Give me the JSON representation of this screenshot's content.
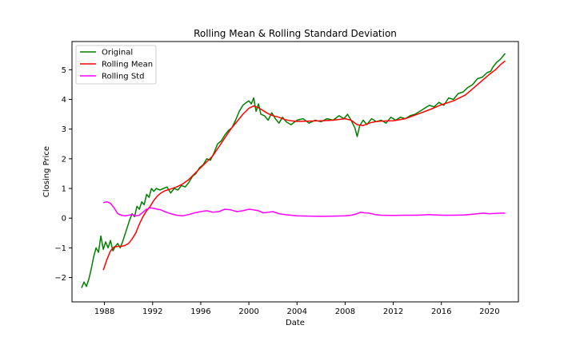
{
  "chart_data": {
    "type": "line",
    "title": "Rolling Mean & Rolling Standard Deviation",
    "xlabel": "Date",
    "ylabel": "Closing Price",
    "xlim": [
      1985.3,
      2022.4
    ],
    "ylim": [
      -2.82,
      5.95
    ],
    "x_ticks": [
      1988,
      1992,
      1996,
      2000,
      2004,
      2008,
      2012,
      2016,
      2020
    ],
    "x_tick_labels": [
      "1988",
      "1992",
      "1996",
      "2000",
      "2004",
      "2008",
      "2012",
      "2016",
      "2020"
    ],
    "y_ticks": [
      -2,
      -1,
      0,
      1,
      2,
      3,
      4,
      5
    ],
    "y_tick_labels": [
      "−2",
      "−1",
      "0",
      "1",
      "2",
      "3",
      "4",
      "5"
    ],
    "grid": false,
    "legend_position": "upper-left",
    "series": [
      {
        "name": "Original",
        "color": "#008000",
        "x": [
          1986.1,
          1986.3,
          1986.5,
          1986.7,
          1986.9,
          1987.1,
          1987.3,
          1987.5,
          1987.7,
          1987.9,
          1988.1,
          1988.3,
          1988.5,
          1988.7,
          1988.9,
          1989.1,
          1989.3,
          1989.5,
          1989.7,
          1989.9,
          1990.1,
          1990.3,
          1990.5,
          1990.7,
          1990.9,
          1991.1,
          1991.3,
          1991.5,
          1991.7,
          1991.9,
          1992.1,
          1992.3,
          1992.6,
          1992.9,
          1993.2,
          1993.5,
          1993.8,
          1994.1,
          1994.4,
          1994.7,
          1995.0,
          1995.3,
          1995.6,
          1995.9,
          1996.2,
          1996.5,
          1996.8,
          1997.1,
          1997.4,
          1997.7,
          1998.0,
          1998.3,
          1998.6,
          1998.9,
          1999.2,
          1999.5,
          1999.8,
          2000.0,
          2000.2,
          2000.4,
          2000.6,
          2000.8,
          2001.0,
          2001.3,
          2001.6,
          2001.9,
          2002.2,
          2002.5,
          2002.8,
          2003.1,
          2003.5,
          2004.0,
          2004.5,
          2005.0,
          2005.5,
          2006.0,
          2006.5,
          2007.0,
          2007.5,
          2007.9,
          2008.2,
          2008.5,
          2008.8,
          2009.0,
          2009.2,
          2009.5,
          2009.8,
          2010.2,
          2010.6,
          2011.0,
          2011.4,
          2011.8,
          2012.2,
          2012.6,
          2013.0,
          2013.4,
          2013.8,
          2014.2,
          2014.6,
          2015.0,
          2015.4,
          2015.8,
          2016.2,
          2016.6,
          2017.0,
          2017.4,
          2017.8,
          2018.2,
          2018.6,
          2019.0,
          2019.4,
          2019.8,
          2020.1,
          2020.3,
          2020.6,
          2020.9,
          2021.1,
          2021.3
        ],
        "values": [
          -2.35,
          -2.15,
          -2.3,
          -2.05,
          -1.7,
          -1.3,
          -1.0,
          -1.15,
          -0.6,
          -1.05,
          -0.8,
          -1.0,
          -0.75,
          -1.1,
          -0.95,
          -0.85,
          -1.0,
          -0.8,
          -0.55,
          -0.3,
          -0.05,
          0.15,
          0.05,
          0.4,
          0.3,
          0.55,
          0.45,
          0.8,
          0.7,
          1.0,
          0.9,
          1.0,
          0.95,
          1.0,
          1.05,
          0.85,
          1.0,
          0.95,
          1.1,
          1.05,
          1.2,
          1.4,
          1.5,
          1.7,
          1.8,
          2.0,
          1.95,
          2.2,
          2.5,
          2.6,
          2.8,
          2.95,
          3.05,
          3.3,
          3.6,
          3.8,
          3.9,
          3.95,
          3.85,
          4.05,
          3.6,
          3.85,
          3.5,
          3.45,
          3.3,
          3.55,
          3.35,
          3.2,
          3.4,
          3.25,
          3.15,
          3.3,
          3.35,
          3.2,
          3.3,
          3.25,
          3.35,
          3.3,
          3.45,
          3.35,
          3.5,
          3.3,
          3.05,
          2.75,
          3.1,
          3.3,
          3.15,
          3.35,
          3.25,
          3.3,
          3.2,
          3.4,
          3.3,
          3.4,
          3.35,
          3.45,
          3.5,
          3.6,
          3.7,
          3.8,
          3.75,
          3.9,
          3.8,
          4.05,
          4.0,
          4.2,
          4.25,
          4.4,
          4.5,
          4.7,
          4.75,
          4.9,
          4.95,
          5.1,
          5.25,
          5.35,
          5.45,
          5.55
        ]
      },
      {
        "name": "Rolling Mean",
        "color": "#ff0000",
        "x": [
          1987.9,
          1988.2,
          1988.5,
          1988.8,
          1989.1,
          1989.4,
          1989.7,
          1990.0,
          1990.3,
          1990.6,
          1990.9,
          1991.2,
          1991.5,
          1991.8,
          1992.1,
          1992.4,
          1992.7,
          1993.0,
          1993.5,
          1994.0,
          1994.5,
          1995.0,
          1995.5,
          1996.0,
          1996.5,
          1997.0,
          1997.5,
          1998.0,
          1998.5,
          1999.0,
          1999.5,
          2000.0,
          2000.4,
          2000.8,
          2001.2,
          2001.6,
          2002.0,
          2002.5,
          2003.0,
          2003.5,
          2004.0,
          2005.0,
          2006.0,
          2007.0,
          2008.0,
          2008.5,
          2009.0,
          2009.5,
          2010.0,
          2010.5,
          2011.0,
          2012.0,
          2013.0,
          2014.0,
          2015.0,
          2016.0,
          2017.0,
          2018.0,
          2019.0,
          2020.0,
          2020.5,
          2021.0,
          2021.3
        ],
        "values": [
          -1.75,
          -1.4,
          -1.1,
          -0.97,
          -0.95,
          -0.95,
          -0.92,
          -0.85,
          -0.7,
          -0.5,
          -0.2,
          0.05,
          0.25,
          0.4,
          0.6,
          0.75,
          0.85,
          0.92,
          0.98,
          1.05,
          1.15,
          1.3,
          1.5,
          1.7,
          1.9,
          2.1,
          2.4,
          2.7,
          3.0,
          3.25,
          3.5,
          3.7,
          3.78,
          3.72,
          3.62,
          3.52,
          3.45,
          3.4,
          3.32,
          3.28,
          3.26,
          3.27,
          3.28,
          3.3,
          3.35,
          3.3,
          3.15,
          3.12,
          3.2,
          3.25,
          3.27,
          3.28,
          3.35,
          3.5,
          3.65,
          3.82,
          3.95,
          4.15,
          4.5,
          4.85,
          5.0,
          5.2,
          5.3
        ]
      },
      {
        "name": "Rolling Std",
        "color": "#ff00ff",
        "x": [
          1987.9,
          1988.2,
          1988.5,
          1988.8,
          1989.1,
          1989.4,
          1989.7,
          1990.0,
          1990.3,
          1990.6,
          1990.9,
          1991.2,
          1991.5,
          1991.8,
          1992.1,
          1992.4,
          1992.7,
          1993.0,
          1993.5,
          1994.0,
          1994.5,
          1995.0,
          1995.5,
          1996.0,
          1996.5,
          1997.0,
          1997.5,
          1998.0,
          1998.5,
          1999.0,
          1999.5,
          2000.0,
          2000.4,
          2000.8,
          2001.2,
          2001.6,
          2002.0,
          2002.5,
          2003.0,
          2003.5,
          2004.0,
          2005.0,
          2006.0,
          2007.0,
          2008.0,
          2008.5,
          2009.0,
          2009.3,
          2009.6,
          2010.0,
          2010.5,
          2011.0,
          2012.0,
          2013.0,
          2014.0,
          2015.0,
          2016.0,
          2017.0,
          2018.0,
          2019.0,
          2019.5,
          2020.0,
          2020.5,
          2021.0,
          2021.3
        ],
        "values": [
          0.52,
          0.55,
          0.5,
          0.35,
          0.15,
          0.1,
          0.08,
          0.1,
          0.12,
          0.08,
          0.1,
          0.2,
          0.3,
          0.35,
          0.33,
          0.3,
          0.28,
          0.22,
          0.15,
          0.1,
          0.08,
          0.12,
          0.18,
          0.22,
          0.25,
          0.2,
          0.22,
          0.3,
          0.28,
          0.22,
          0.25,
          0.3,
          0.28,
          0.25,
          0.18,
          0.2,
          0.22,
          0.15,
          0.12,
          0.1,
          0.08,
          0.07,
          0.06,
          0.07,
          0.08,
          0.1,
          0.15,
          0.2,
          0.18,
          0.17,
          0.12,
          0.1,
          0.09,
          0.1,
          0.1,
          0.12,
          0.1,
          0.1,
          0.11,
          0.15,
          0.17,
          0.15,
          0.16,
          0.17,
          0.17
        ]
      }
    ]
  }
}
